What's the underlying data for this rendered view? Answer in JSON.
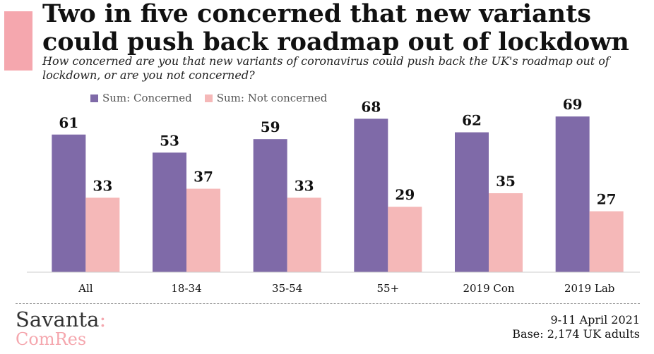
{
  "header": {
    "title": "Two in five concerned that new variants could push back roadmap out of lockdown",
    "subtitle": "How concerned are you that new variants of coronavirus could push back the UK's roadmap out of lockdown, or are you not concerned?"
  },
  "colors": {
    "accent": "#f5a7ae",
    "concerned": "#7f6aa8",
    "not_concerned": "#f5b8b8"
  },
  "chart_data": {
    "type": "bar",
    "categories": [
      "All",
      "18-34",
      "35-54",
      "55+",
      "2019 Con",
      "2019 Lab"
    ],
    "series": [
      {
        "name": "Sum: Concerned",
        "values": [
          61,
          53,
          59,
          68,
          62,
          69
        ]
      },
      {
        "name": "Sum: Not concerned",
        "values": [
          33,
          37,
          33,
          29,
          35,
          27
        ]
      }
    ],
    "ylim": [
      0,
      80
    ],
    "grid": false,
    "legend_position": "top-left",
    "data_labels": true
  },
  "footer": {
    "brand_line1": "Savanta",
    "brand_colon": ":",
    "brand_line2": "ComRes",
    "date": "9-11 April 2021",
    "base": "Base: 2,174 UK adults"
  }
}
